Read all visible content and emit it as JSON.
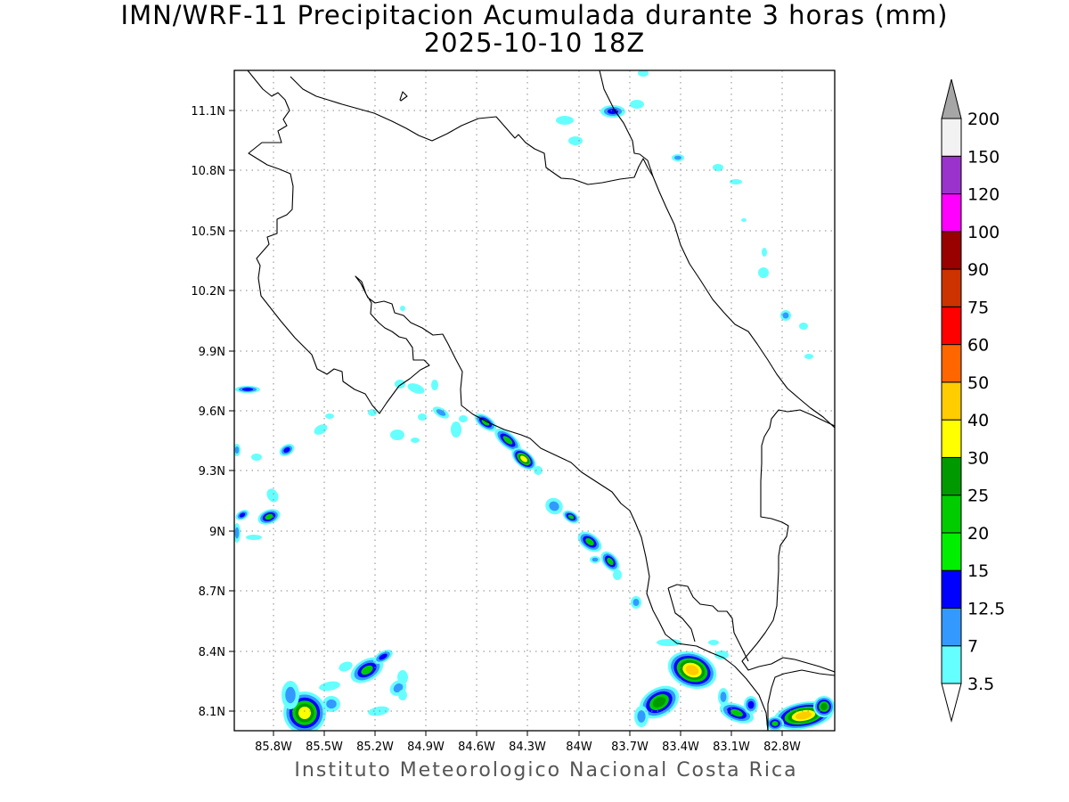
{
  "title": {
    "line1": "IMN/WRF-11 Precipitacion Acumulada durante 3 horas (mm)",
    "line2": "2025-10-10 18Z"
  },
  "footer": "Instituto Meteorologico Nacional Costa Rica",
  "axes": {
    "lat_labels": [
      "11.1N",
      "10.8N",
      "10.5N",
      "10.2N",
      "9.9N",
      "9.6N",
      "9.3N",
      "9N",
      "8.7N",
      "8.4N",
      "8.1N"
    ],
    "lon_labels": [
      "85.8W",
      "85.5W",
      "85.2W",
      "84.9W",
      "84.6W",
      "84.3W",
      "84W",
      "83.7W",
      "83.4W",
      "83.1W",
      "82.8W"
    ],
    "lat_range": [
      8.0,
      11.3
    ],
    "lon_range": [
      -85.98,
      -82.65
    ],
    "grid": "dotted"
  },
  "colorbar": {
    "labels": [
      "3.5",
      "7",
      "12.5",
      "15",
      "20",
      "25",
      "30",
      "40",
      "50",
      "60",
      "75",
      "90",
      "100",
      "120",
      "150",
      "200"
    ],
    "colors": [
      "#66ffff",
      "#3399ff",
      "#0000ff",
      "#00ee00",
      "#00cc00",
      "#009900",
      "#ffff00",
      "#ffcc00",
      "#ff6600",
      "#ff0000",
      "#cc3300",
      "#990000",
      "#ff00ff",
      "#9933cc",
      "#f2f2f2"
    ],
    "overflow_color": "#a6a6a6",
    "underflow_color": "#ffffff"
  }
}
